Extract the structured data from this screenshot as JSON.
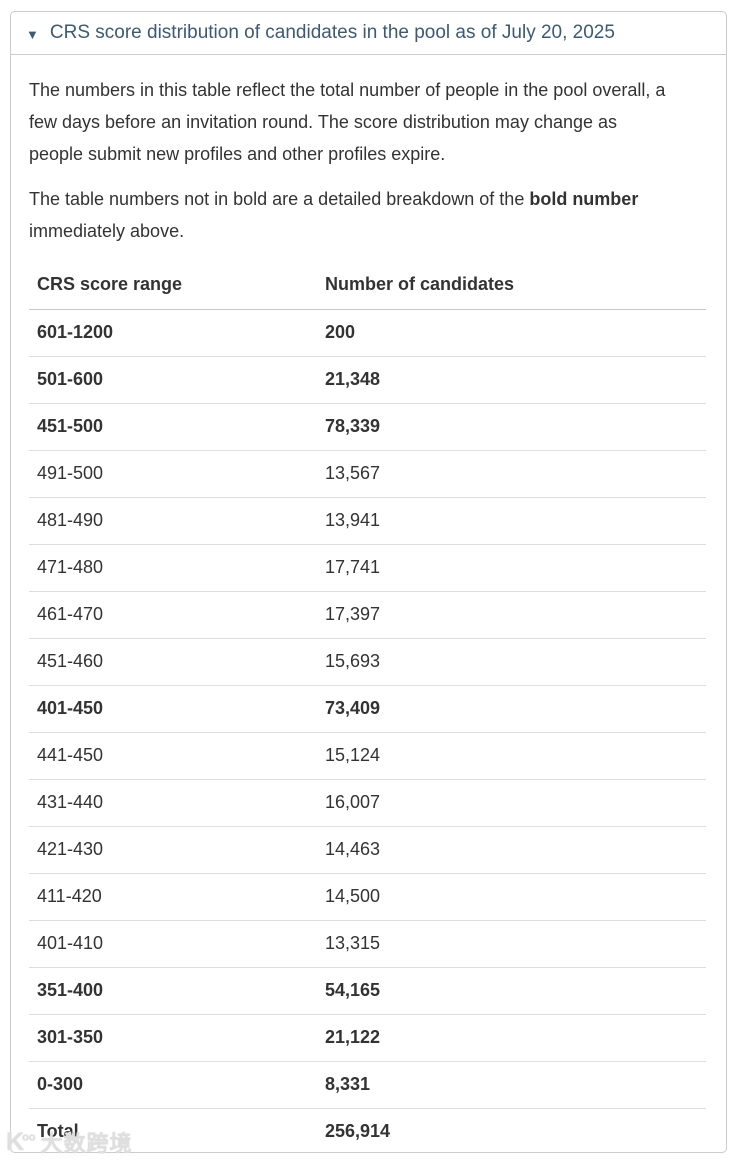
{
  "details": {
    "caret_icon": "▼",
    "title": "CRS score distribution of candidates in the pool as of July 20, 2025"
  },
  "paragraphs": {
    "intro": "The numbers in this table reflect the total number of people in the pool overall, a few days before an invitation round. The score distribution may change as people submit new profiles and other profiles expire.",
    "note_part1": "The table numbers not in bold are a detailed breakdown of the ",
    "note_bold": "bold number",
    "note_part2": " immediately above."
  },
  "table": {
    "headers": [
      "CRS score range",
      "Number of candidates"
    ],
    "rows": [
      {
        "range": "601-1200",
        "count": "200",
        "bold": true
      },
      {
        "range": "501-600",
        "count": "21,348",
        "bold": true
      },
      {
        "range": "451-500",
        "count": "78,339",
        "bold": true
      },
      {
        "range": "491-500",
        "count": "13,567",
        "bold": false
      },
      {
        "range": "481-490",
        "count": "13,941",
        "bold": false
      },
      {
        "range": "471-480",
        "count": "17,741",
        "bold": false
      },
      {
        "range": "461-470",
        "count": "17,397",
        "bold": false
      },
      {
        "range": "451-460",
        "count": "15,693",
        "bold": false
      },
      {
        "range": "401-450",
        "count": "73,409",
        "bold": true
      },
      {
        "range": "441-450",
        "count": "15,124",
        "bold": false
      },
      {
        "range": "431-440",
        "count": "16,007",
        "bold": false
      },
      {
        "range": "421-430",
        "count": "14,463",
        "bold": false
      },
      {
        "range": "411-420",
        "count": "14,500",
        "bold": false
      },
      {
        "range": "401-410",
        "count": "13,315",
        "bold": false
      },
      {
        "range": "351-400",
        "count": "54,165",
        "bold": true
      },
      {
        "range": "301-350",
        "count": "21,122",
        "bold": true
      },
      {
        "range": "0-300",
        "count": "8,331",
        "bold": true
      },
      {
        "range": "Total",
        "count": "256,914",
        "bold": true
      }
    ]
  },
  "watermark": {
    "logo": "K",
    "logo_dots": "oo",
    "text": "大数跨境"
  },
  "colors": {
    "title": "#3b5a76",
    "body_text": "#333333",
    "panel_border": "#cccccc",
    "header_divider": "#c8c8c8",
    "row_divider": "#dddddd",
    "watermark": "#dfdfdf"
  }
}
